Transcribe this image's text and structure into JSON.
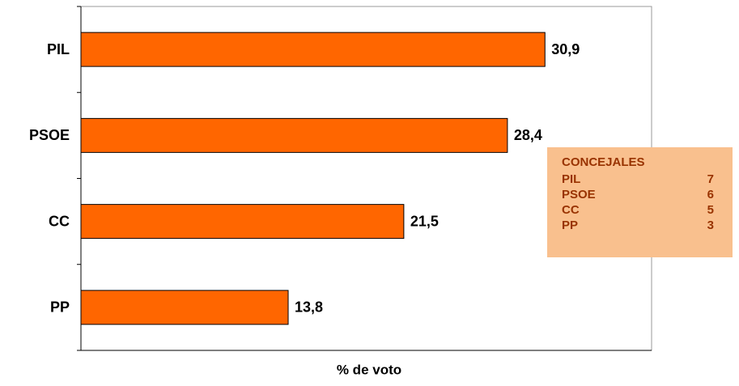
{
  "chart_data": {
    "type": "hbar",
    "categories": [
      "PIL",
      "PSOE",
      "CC",
      "PP"
    ],
    "values": [
      30.9,
      28.4,
      21.5,
      13.8
    ],
    "value_labels": [
      "30,9",
      "28,4",
      "21,5",
      "13,8"
    ],
    "color": "#ff6600",
    "xlabel": "% de voto",
    "xlim": [
      0,
      38
    ],
    "seats_table": {
      "title": "CONCEJALES",
      "rows": [
        [
          "PIL",
          "7"
        ],
        [
          "PSOE",
          "6"
        ],
        [
          "CC",
          "5"
        ],
        [
          "PP",
          "3"
        ]
      ]
    }
  }
}
